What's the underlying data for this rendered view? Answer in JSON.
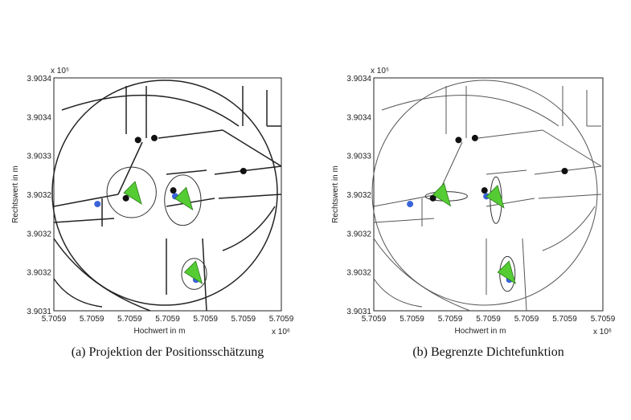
{
  "chart_data": [
    {
      "type": "scatter",
      "caption": "(a) Projektion der Positionsschätzung",
      "xlabel": "Hochwert in m",
      "ylabel": "Rechtswert in m",
      "x_exponent": "x 10⁶",
      "y_exponent": "x 10⁵",
      "x_ticks": [
        "5.7059",
        "5.7059",
        "5.7059",
        "5.7059",
        "5.7059",
        "5.7059",
        "5.7059"
      ],
      "y_ticks": [
        "3.9034",
        "3.9034",
        "3.9033",
        "3.9032",
        "3.9032",
        "3.9032",
        "3.9031"
      ],
      "xlim": [
        0,
        6
      ],
      "ylim": [
        0,
        6
      ],
      "grid": false,
      "series": [
        {
          "marker": "black-dot",
          "color": "#111111",
          "points": [
            [
              2.22,
              4.4
            ],
            [
              2.65,
              4.45
            ],
            [
              5.0,
              3.6
            ],
            [
              1.9,
              2.9
            ],
            [
              3.15,
              3.1
            ]
          ]
        },
        {
          "marker": "blue-dot",
          "color": "#3a64d8",
          "points": [
            [
              1.15,
              2.75
            ],
            [
              3.2,
              2.95
            ],
            [
              3.75,
              0.8
            ]
          ]
        },
        {
          "marker": "green-triangle",
          "color": "#55cc33",
          "points": [
            [
              2.1,
              3.0
            ],
            [
              3.45,
              2.85
            ],
            [
              3.7,
              0.95
            ]
          ]
        }
      ],
      "ellipses": [
        {
          "cx": 2.05,
          "cy": 3.05,
          "rx": 0.65,
          "ry": 0.65
        },
        {
          "cx": 3.4,
          "cy": 2.85,
          "rx": 0.48,
          "ry": 0.65
        },
        {
          "cx": 3.7,
          "cy": 0.95,
          "rx": 0.33,
          "ry": 0.4
        }
      ]
    },
    {
      "type": "scatter",
      "caption": "(b) Begrenzte Dichtefunktion",
      "xlabel": "Hochwert in m",
      "ylabel": "Rechtswert in m",
      "x_exponent": "x 10⁶",
      "y_exponent": "x 10⁵",
      "x_ticks": [
        "5.7059",
        "5.7059",
        "5.7059",
        "5.7059",
        "5.7059",
        "5.7059",
        "5.7059"
      ],
      "y_ticks": [
        "3.9034",
        "3.9034",
        "3.9033",
        "3.9032",
        "3.9032",
        "3.9032",
        "3.9031"
      ],
      "xlim": [
        0,
        6
      ],
      "ylim": [
        0,
        6
      ],
      "grid": false,
      "series": [
        {
          "marker": "black-dot",
          "color": "#111111",
          "points": [
            [
              2.22,
              4.4
            ],
            [
              2.65,
              4.45
            ],
            [
              5.0,
              3.6
            ],
            [
              1.55,
              2.9
            ],
            [
              2.9,
              3.1
            ]
          ]
        },
        {
          "marker": "blue-dot",
          "color": "#3a64d8",
          "points": [
            [
              0.95,
              2.75
            ],
            [
              2.95,
              2.95
            ],
            [
              3.55,
              0.8
            ]
          ]
        },
        {
          "marker": "green-triangle",
          "color": "#55cc33",
          "points": [
            [
              1.8,
              2.95
            ],
            [
              3.2,
              2.9
            ],
            [
              3.5,
              0.95
            ]
          ]
        }
      ],
      "ellipses": [
        {
          "cx": 1.9,
          "cy": 2.95,
          "rx": 0.55,
          "ry": 0.12
        },
        {
          "cx": 3.2,
          "cy": 2.85,
          "rx": 0.15,
          "ry": 0.6
        },
        {
          "cx": 3.5,
          "cy": 0.95,
          "rx": 0.2,
          "ry": 0.45
        }
      ]
    }
  ]
}
